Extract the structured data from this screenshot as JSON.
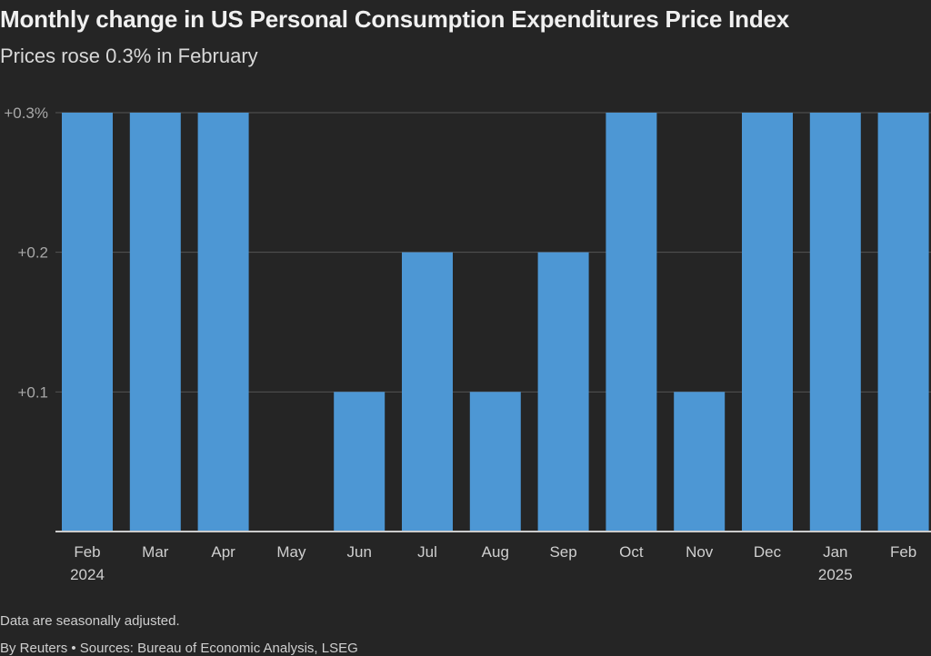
{
  "title": "Monthly change in US Personal Consumption Expenditures Price Index",
  "subtitle": "Prices rose 0.3% in February",
  "footer": {
    "note": "Data are seasonally adjusted.",
    "source": "By Reuters • Sources: Bureau of Economic Analysis, LSEG"
  },
  "chart_data": {
    "type": "bar",
    "categories": [
      "Feb",
      "Mar",
      "Apr",
      "May",
      "Jun",
      "Jul",
      "Aug",
      "Sep",
      "Oct",
      "Nov",
      "Dec",
      "Jan",
      "Feb"
    ],
    "category_sublabels": [
      "2024",
      "",
      "",
      "",
      "",
      "",
      "",
      "",
      "",
      "",
      "",
      "2025",
      ""
    ],
    "values": [
      0.3,
      0.3,
      0.3,
      0.0,
      0.1,
      0.2,
      0.1,
      0.2,
      0.3,
      0.1,
      0.3,
      0.3,
      0.3
    ],
    "ylim": [
      0,
      0.3
    ],
    "yticks": [
      0.1,
      0.2,
      0.3
    ],
    "ytick_labels": [
      "+0.1",
      "+0.2",
      "+0.3%"
    ],
    "grid": true,
    "colors": {
      "bar": "#4d97d4",
      "grid": "#555555",
      "axis": "#cccccc",
      "background": "#252525"
    }
  }
}
